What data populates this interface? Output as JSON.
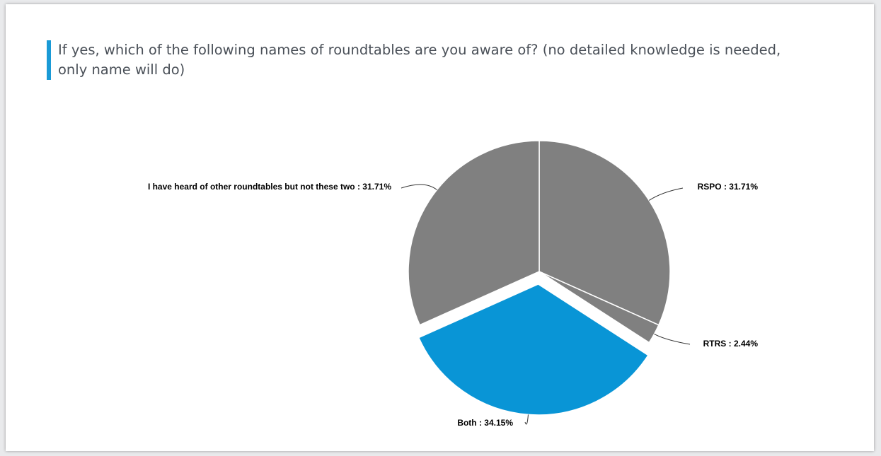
{
  "question": {
    "text": "If yes, which of the following names of roundtables are you aware of? (no detailed knowledge is needed, only name will do)",
    "accent_color": "#1a9ad6"
  },
  "chart_data": {
    "type": "pie",
    "slices": [
      {
        "label": "RSPO : 31.71%",
        "name": "RSPO",
        "value": 31.71,
        "color": "#808080",
        "exploded": false
      },
      {
        "label": "RTRS : 2.44%",
        "name": "RTRS",
        "value": 2.44,
        "color": "#808080",
        "exploded": false
      },
      {
        "label": "Both : 34.15%",
        "name": "Both",
        "value": 34.15,
        "color": "#0995d6",
        "exploded": true
      },
      {
        "label": "I have heard of other roundtables but not these two : 31.71%",
        "name": "I have heard of other roundtables but not these two",
        "value": 31.71,
        "color": "#808080",
        "exploded": false
      }
    ],
    "start_angle": "12 o'clock",
    "direction": "clockwise",
    "legend": "none"
  }
}
